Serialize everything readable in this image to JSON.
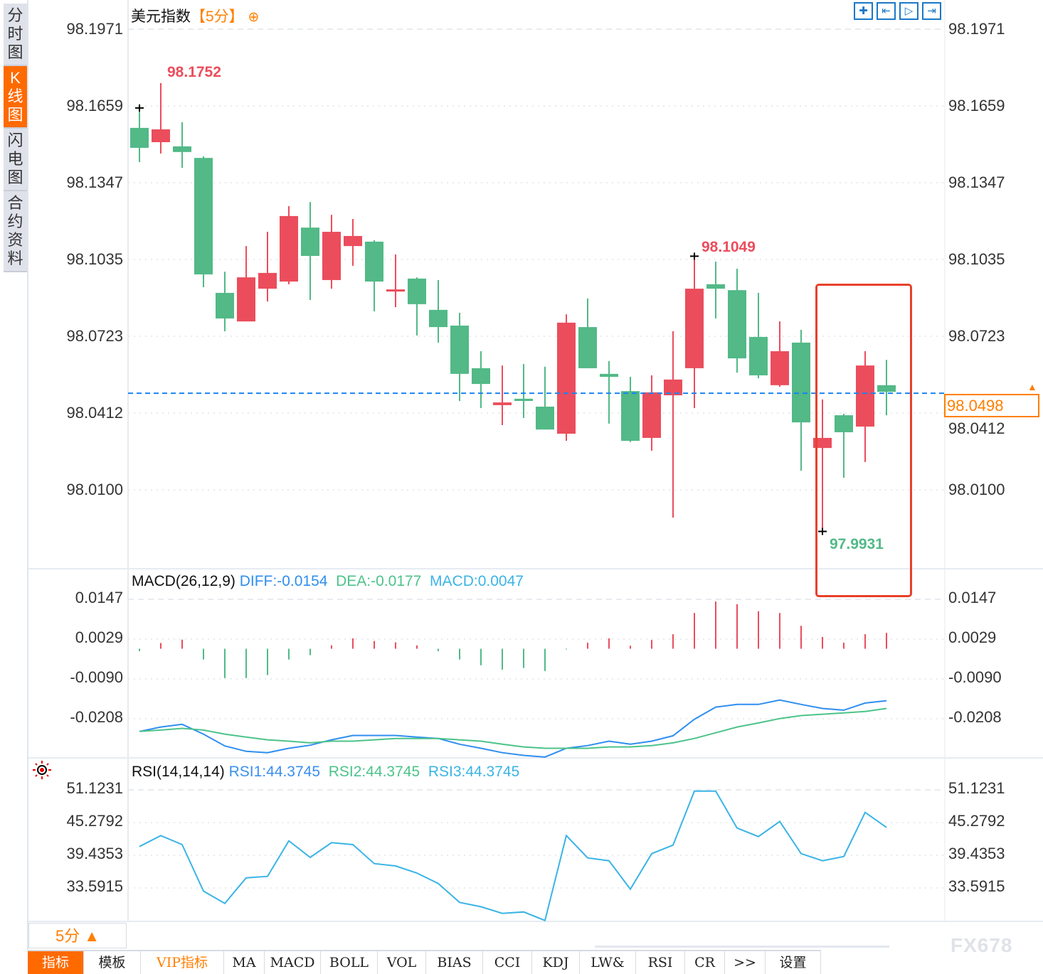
{
  "sidebar": {
    "items": [
      {
        "label": "分时图",
        "active": false
      },
      {
        "label": "K线图",
        "active": true
      },
      {
        "label": "闪电图",
        "active": false
      },
      {
        "label": "合约资料",
        "active": false
      }
    ]
  },
  "header": {
    "instrument": "美元指数",
    "period": "【5分】",
    "add_icon": "circle-plus-icon",
    "toolbar_icons": [
      "crosshair-icon",
      "zoom-to-start-icon",
      "play-forward-icon",
      "jump-to-end-icon"
    ]
  },
  "colors": {
    "up": "#eb4d5c",
    "down": "#52b987",
    "diff": "#2f8ef0",
    "dea": "#4cc38a",
    "macd_label": "#3ab4e6",
    "rsi": "#3ab4e6",
    "accent": "#ff7f00",
    "last_price_line": "#1a84f0",
    "highlight": "#e8402a"
  },
  "price_tag": "98.0498",
  "macd_header": {
    "name": "MACD(26,12,9)",
    "diff": "DIFF:-0.0154",
    "dea": "DEA:-0.0177",
    "macd": "MACD:0.0047"
  },
  "rsi_header": {
    "name": "RSI(14,14,14)",
    "rsi1": "RSI1:44.3745",
    "rsi2": "RSI2:44.3745",
    "rsi3": "RSI3:44.3745"
  },
  "bottom": {
    "period_selector": "5分 ▲",
    "tabs": [
      {
        "label": "指标",
        "active": true
      },
      {
        "label": "模板"
      },
      {
        "label": "VIP指标",
        "vip": true
      },
      {
        "label": "MA"
      },
      {
        "label": "MACD"
      },
      {
        "label": "BOLL"
      },
      {
        "label": "VOL"
      },
      {
        "label": "BIAS"
      },
      {
        "label": "CCI"
      },
      {
        "label": "KDJ"
      },
      {
        "label": "LW&"
      },
      {
        "label": "RSI"
      },
      {
        "label": "CR"
      },
      {
        "label": ">>"
      },
      {
        "label": "设置"
      }
    ],
    "watermark": "FX678"
  },
  "chart_data": [
    {
      "type": "candlestick",
      "title": "美元指数【5分】",
      "y_ticks": [
        "98.1971",
        "98.1659",
        "98.1347",
        "98.1035",
        "98.0723",
        "98.0412",
        "98.0100"
      ],
      "ylim": [
        97.9871,
        98.1971
      ],
      "grid": true,
      "last_price": 98.0498,
      "annotations": {
        "high": "98.1752",
        "local_high": "98.1049",
        "low": "97.9931"
      },
      "ohlc": [
        [
          98.157,
          98.1651,
          98.1431,
          98.1489
        ],
        [
          98.1512,
          98.1752,
          98.1466,
          98.1564
        ],
        [
          98.1495,
          98.1593,
          98.1408,
          98.1472
        ],
        [
          98.1448,
          98.1454,
          98.0923,
          98.0975
        ],
        [
          98.09,
          98.0986,
          98.0744,
          98.0796
        ],
        [
          98.0784,
          98.109,
          98.0784,
          98.0963
        ],
        [
          98.0917,
          98.1148,
          98.0865,
          98.0981
        ],
        [
          98.0946,
          98.1252,
          98.0935,
          98.1212
        ],
        [
          98.1165,
          98.1269,
          98.0871,
          98.105
        ],
        [
          98.0952,
          98.1217,
          98.0917,
          98.1148
        ],
        [
          98.109,
          98.12,
          98.101,
          98.1131
        ],
        [
          98.1108,
          98.1114,
          98.0825,
          98.0946
        ],
        [
          98.0914,
          98.1056,
          98.0842,
          98.0914
        ],
        [
          98.0958,
          98.0963,
          98.0727,
          98.0854
        ],
        [
          98.0831,
          98.0952,
          98.0698,
          98.0761
        ],
        [
          98.0767,
          98.0819,
          98.0461,
          98.0571
        ],
        [
          98.0594,
          98.0663,
          98.0432,
          98.053
        ],
        [
          98.0444,
          98.0605,
          98.0363,
          98.0455
        ],
        [
          98.047,
          98.0611,
          98.0392,
          98.0461
        ],
        [
          98.0438,
          98.06,
          98.0345,
          98.0345
        ],
        [
          98.0328,
          98.0813,
          98.0299,
          98.0779
        ],
        [
          98.0761,
          98.0877,
          98.0594,
          98.0594
        ],
        [
          98.0571,
          98.0623,
          98.0369,
          98.0559
        ],
        [
          98.0501,
          98.0559,
          98.0294,
          98.0299
        ],
        [
          98.0311,
          98.0565,
          98.0259,
          98.0496
        ],
        [
          98.0484,
          98.0744,
          97.9987,
          98.0548
        ],
        [
          98.0594,
          98.1049,
          98.0432,
          98.0917
        ],
        [
          98.0935,
          98.1027,
          98.0796,
          98.0917
        ],
        [
          98.0911,
          98.0998,
          98.0576,
          98.0634
        ],
        [
          98.0721,
          98.09,
          98.0553,
          98.0565
        ],
        [
          98.0525,
          98.0784,
          98.0519,
          98.0663
        ],
        [
          98.0698,
          98.075,
          98.0178,
          98.0374
        ],
        [
          98.027,
          98.0467,
          97.9931,
          98.0311
        ],
        [
          98.0403,
          98.0409,
          98.0149,
          98.0334
        ],
        [
          98.0357,
          98.0663,
          98.0213,
          98.0605
        ],
        [
          98.0525,
          98.0628,
          98.0403,
          98.0498
        ]
      ]
    },
    {
      "type": "bar+line",
      "title": "MACD(26,12,9)",
      "y_ticks": [
        "0.0147",
        "0.0029",
        "-0.0090",
        "-0.0208"
      ],
      "grid": true,
      "series": [
        {
          "name": "MACD",
          "type": "bar",
          "values": [
            -0.0007,
            0.0017,
            0.0027,
            -0.0032,
            -0.0087,
            -0.0087,
            -0.0078,
            -0.0032,
            -0.0019,
            0.001,
            0.0031,
            0.0023,
            0.0019,
            0.001,
            -0.0007,
            -0.0032,
            -0.0049,
            -0.0062,
            -0.0057,
            -0.0066,
            -0.0002,
            0.0018,
            0.0031,
            0.0009,
            0.0026,
            0.0043,
            0.0106,
            0.014,
            0.0132,
            0.0111,
            0.0106,
            0.0068,
            0.0035,
            0.0018,
            0.0043,
            0.0047
          ]
        },
        {
          "name": "DIFF",
          "type": "line",
          "values": [
            -0.0245,
            -0.0232,
            -0.0224,
            -0.0253,
            -0.0288,
            -0.0304,
            -0.0308,
            -0.0295,
            -0.0286,
            -0.027,
            -0.0257,
            -0.0257,
            -0.0257,
            -0.0262,
            -0.0266,
            -0.0283,
            -0.0295,
            -0.0308,
            -0.0316,
            -0.0321,
            -0.0295,
            -0.0287,
            -0.0274,
            -0.0283,
            -0.0274,
            -0.0258,
            -0.0209,
            -0.0173,
            -0.0165,
            -0.0165,
            -0.0152,
            -0.0165,
            -0.0177,
            -0.0182,
            -0.0161,
            -0.0154
          ]
        },
        {
          "name": "DEA",
          "type": "line",
          "values": [
            -0.0245,
            -0.0241,
            -0.0236,
            -0.0241,
            -0.0253,
            -0.0262,
            -0.027,
            -0.0274,
            -0.0279,
            -0.0274,
            -0.0274,
            -0.027,
            -0.0266,
            -0.0266,
            -0.0266,
            -0.027,
            -0.0274,
            -0.0283,
            -0.0291,
            -0.0295,
            -0.0295,
            -0.0295,
            -0.0291,
            -0.0291,
            -0.0287,
            -0.0279,
            -0.0266,
            -0.0249,
            -0.0232,
            -0.022,
            -0.0207,
            -0.0198,
            -0.0194,
            -0.019,
            -0.0186,
            -0.0177
          ]
        }
      ]
    },
    {
      "type": "line",
      "title": "RSI(14,14,14)",
      "y_ticks": [
        "51.1231",
        "45.2792",
        "39.4353",
        "33.5915"
      ],
      "grid": true,
      "series": [
        {
          "name": "RSI1",
          "values": [
            40.96,
            42.91,
            41.3,
            33.0,
            30.8,
            35.37,
            35.62,
            41.98,
            39.01,
            41.64,
            41.3,
            37.91,
            37.49,
            36.22,
            34.35,
            30.97,
            30.2,
            29.02,
            29.27,
            27.75,
            42.91,
            38.93,
            38.42,
            33.34,
            39.69,
            41.21,
            50.87,
            50.87,
            44.26,
            42.74,
            45.45,
            39.69,
            38.42,
            39.18,
            47.06,
            44.3745
          ]
        }
      ]
    }
  ]
}
